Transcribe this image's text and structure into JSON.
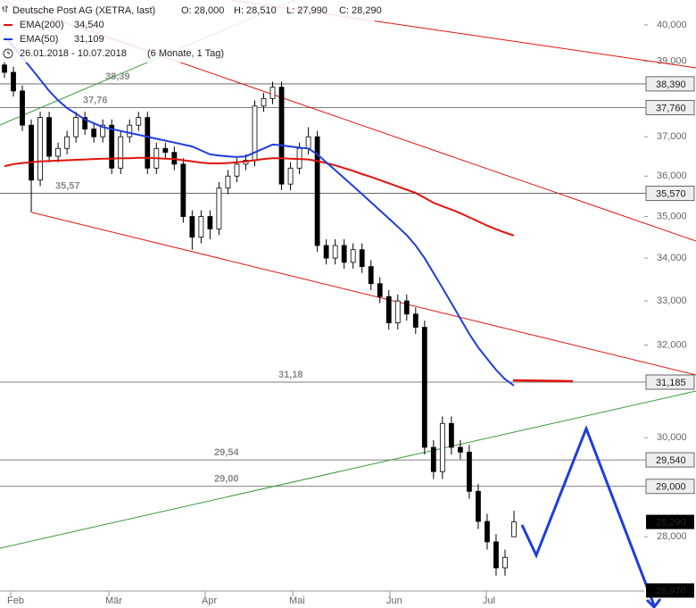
{
  "chart_data": {
    "type": "candlestick",
    "title": "Deutsche Post AG (XETRA, last)",
    "ohlc_labels": [
      "O: 28,000",
      "H: 28,510",
      "L: 27,990",
      "C: 28,290"
    ],
    "period": "26.01.2018 - 10.07.2018",
    "period_note": "(6 Monate, 1 Tag)",
    "x_labels": [
      "Feb",
      "Mär",
      "Apr",
      "Mai",
      "Jun",
      "Jul"
    ],
    "open": [
      38900,
      38700,
      38200,
      37300,
      35900,
      37500,
      36500,
      36700,
      37000,
      37500,
      37200,
      37000,
      37300,
      36200,
      37000,
      37300,
      37500,
      36200,
      36700,
      36600,
      36300,
      35000,
      34500,
      35000,
      34700,
      35700,
      36000,
      36300,
      36400,
      37800,
      38000,
      38300,
      35800,
      36200,
      36700,
      37000,
      34300,
      34000,
      34300,
      33900,
      34200,
      33800,
      33400,
      33100,
      32500,
      33000,
      32700,
      32400,
      29800,
      29300,
      30300,
      29800,
      29700,
      28900,
      28300,
      27900,
      27400,
      28000
    ],
    "high": [
      39050,
      38850,
      38350,
      37450,
      37650,
      37650,
      36850,
      37150,
      37650,
      37650,
      37350,
      37450,
      37450,
      37150,
      37450,
      37650,
      37650,
      36850,
      36850,
      36750,
      36450,
      35150,
      35150,
      35150,
      35850,
      36150,
      36450,
      36550,
      37950,
      38150,
      38450,
      38450,
      36350,
      36850,
      37250,
      37150,
      34450,
      34450,
      34450,
      34350,
      34350,
      33950,
      33550,
      33250,
      33150,
      33150,
      32850,
      32550,
      29950,
      30450,
      30450,
      29950,
      29850,
      29050,
      28450,
      28050,
      27750,
      28510
    ],
    "low": [
      38550,
      38050,
      37150,
      35100,
      35750,
      36350,
      36350,
      36550,
      36850,
      37050,
      36850,
      36850,
      36050,
      36050,
      36850,
      37150,
      36050,
      36050,
      36450,
      36150,
      34850,
      34200,
      34350,
      34450,
      34550,
      35550,
      35850,
      36150,
      36250,
      37650,
      37850,
      35650,
      35650,
      36050,
      36550,
      34150,
      33850,
      33850,
      33750,
      33750,
      33650,
      33250,
      32950,
      32350,
      32350,
      32550,
      32250,
      29650,
      29150,
      29150,
      29650,
      29550,
      28750,
      28150,
      27750,
      27250,
      27250,
      27990
    ],
    "close": [
      38700,
      38200,
      37300,
      35900,
      37500,
      36500,
      36700,
      37000,
      37500,
      37200,
      37000,
      37300,
      36200,
      37000,
      37300,
      37500,
      36200,
      36700,
      36600,
      36300,
      35000,
      34500,
      35000,
      34700,
      35700,
      36000,
      36300,
      36400,
      37800,
      38000,
      38300,
      35800,
      36200,
      36700,
      37000,
      34300,
      34000,
      34300,
      33900,
      34200,
      33800,
      33400,
      33100,
      32500,
      33000,
      32700,
      32400,
      29800,
      29300,
      30300,
      29800,
      29700,
      28900,
      28300,
      27900,
      27400,
      27600,
      28290
    ],
    "series": [
      {
        "name": "EMA(200)",
        "value_label": "34,540",
        "color": "#e0140c",
        "values": [
          36250,
          36300,
          36330,
          36350,
          36370,
          36380,
          36390,
          36400,
          36410,
          36420,
          36430,
          36440,
          36440,
          36450,
          36450,
          36460,
          36460,
          36450,
          36440,
          36430,
          36400,
          36370,
          36340,
          36320,
          36320,
          36330,
          36350,
          36370,
          36400,
          36430,
          36450,
          36450,
          36440,
          36430,
          36420,
          36380,
          36330,
          36270,
          36200,
          36130,
          36050,
          35980,
          35900,
          35820,
          35740,
          35660,
          35580,
          35460,
          35340,
          35250,
          35170,
          35080,
          34980,
          34880,
          34780,
          34690,
          34610,
          34540
        ]
      },
      {
        "name": "EMA(50)",
        "value_label": "31,109",
        "color": "#1e3edc",
        "values": [
          39700,
          39400,
          39100,
          38800,
          38500,
          38200,
          37950,
          37750,
          37600,
          37450,
          37350,
          37250,
          37200,
          37150,
          37100,
          37050,
          37000,
          36950,
          36900,
          36850,
          36800,
          36750,
          36650,
          36550,
          36520,
          36500,
          36480,
          36500,
          36600,
          36700,
          36800,
          36780,
          36750,
          36720,
          36700,
          36550,
          36350,
          36150,
          35950,
          35750,
          35550,
          35350,
          35150,
          34950,
          34750,
          34550,
          34300,
          34000,
          33650,
          33300,
          32950,
          32600,
          32250,
          31950,
          31700,
          31450,
          31250,
          31109
        ]
      }
    ],
    "ylim": [
      26960,
      40700
    ],
    "log_scale": true,
    "yticks": [
      {
        "value": 40000,
        "label": "40,000"
      },
      {
        "value": 39000,
        "label": "39,000"
      },
      {
        "value": 37000,
        "label": "37,000"
      },
      {
        "value": 36000,
        "label": "36,000"
      },
      {
        "value": 35000,
        "label": "35,000"
      },
      {
        "value": 34000,
        "label": "34,000"
      },
      {
        "value": 33000,
        "label": "33,000"
      },
      {
        "value": 32000,
        "label": "32,000"
      },
      {
        "value": 30000,
        "label": "30,000"
      },
      {
        "value": 28000,
        "label": "28,000"
      }
    ],
    "levels": [
      {
        "value": 38390,
        "label": "38,390",
        "annotation": "38,39"
      },
      {
        "value": 37760,
        "label": "37,760",
        "annotation": "37,76"
      },
      {
        "value": 35570,
        "label": "35,570",
        "annotation": "35,57"
      },
      {
        "value": 31185,
        "label": "31,185",
        "annotation": "31,18"
      },
      {
        "value": 29540,
        "label": "29,540",
        "annotation": "29,54"
      },
      {
        "value": 29000,
        "label": "29,000",
        "annotation": "29,00"
      }
    ],
    "last_price": {
      "value": 28290,
      "label": "28,290"
    },
    "target": {
      "value": 26970,
      "label": "26,970"
    }
  }
}
